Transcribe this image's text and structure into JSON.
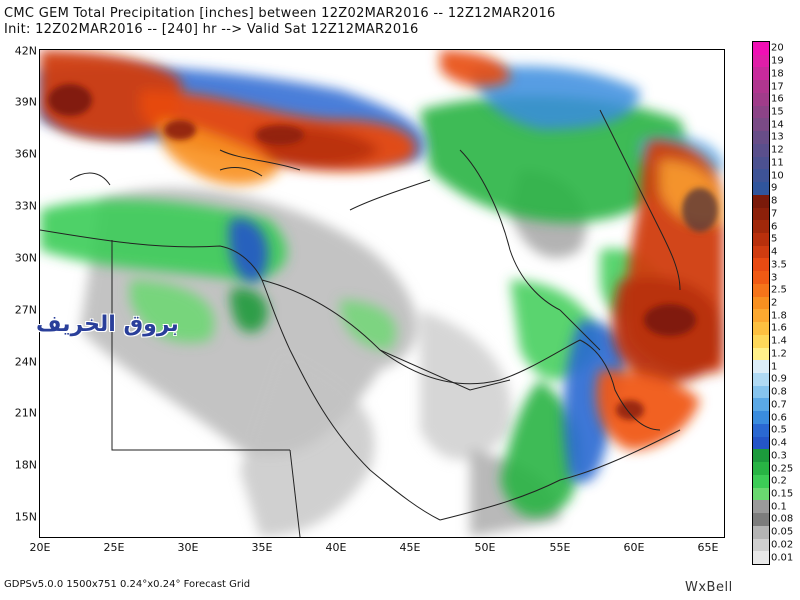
{
  "header": {
    "title": "CMC GEM Total Precipitation [inches] between 12Z02MAR2016 -- 12Z12MAR2016",
    "init": "Init: 12Z02MAR2016 -- [240] hr --> Valid Sat 12Z12MAR2016"
  },
  "axes": {
    "lat_labels": [
      "42N",
      "39N",
      "36N",
      "33N",
      "30N",
      "27N",
      "24N",
      "21N",
      "18N",
      "15N"
    ],
    "lon_labels": [
      "20E",
      "25E",
      "30E",
      "35E",
      "40E",
      "45E",
      "50E",
      "55E",
      "60E",
      "65E"
    ]
  },
  "legend": {
    "labels": [
      "20",
      "19",
      "18",
      "17",
      "16",
      "15",
      "14",
      "13",
      "12",
      "11",
      "10",
      "9",
      "8",
      "7",
      "6",
      "5",
      "4",
      "3.5",
      "3",
      "2.5",
      "2",
      "1.8",
      "1.6",
      "1.4",
      "1.2",
      "1",
      "0.9",
      "0.8",
      "0.7",
      "0.6",
      "0.5",
      "0.4",
      "0.3",
      "0.25",
      "0.2",
      "0.15",
      "0.1",
      "0.08",
      "0.05",
      "0.02",
      "0.01"
    ],
    "colors": [
      "#f00fb4",
      "#e01ea8",
      "#c82a9c",
      "#b0368f",
      "#a03c8a",
      "#8c4387",
      "#7a4a86",
      "#684d88",
      "#5a4f8c",
      "#4c5190",
      "#3e5396",
      "#30559c",
      "#7a1a0a",
      "#8c200a",
      "#a0280a",
      "#b8300c",
      "#d03c10",
      "#e84a12",
      "#f05a14",
      "#f5741a",
      "#f89020",
      "#fca830",
      "#fdc040",
      "#fed85a",
      "#fff08a",
      "#ddeef8",
      "#b0daf4",
      "#86c4ee",
      "#5aa8e6",
      "#3a8cde",
      "#2a68d2",
      "#2455c8",
      "#1c9a3c",
      "#28b444",
      "#3ccc56",
      "#6ad870",
      "#9a9a9a",
      "#7c7c7c",
      "#b4b4b4",
      "#d0d0d0",
      "#e8e8e8"
    ]
  },
  "watermark": "بروق الخريف",
  "footer": {
    "left": "GDPSv5.0.0 1500x751 0.24°x0.24° Forecast Grid",
    "right": "WxBell"
  }
}
